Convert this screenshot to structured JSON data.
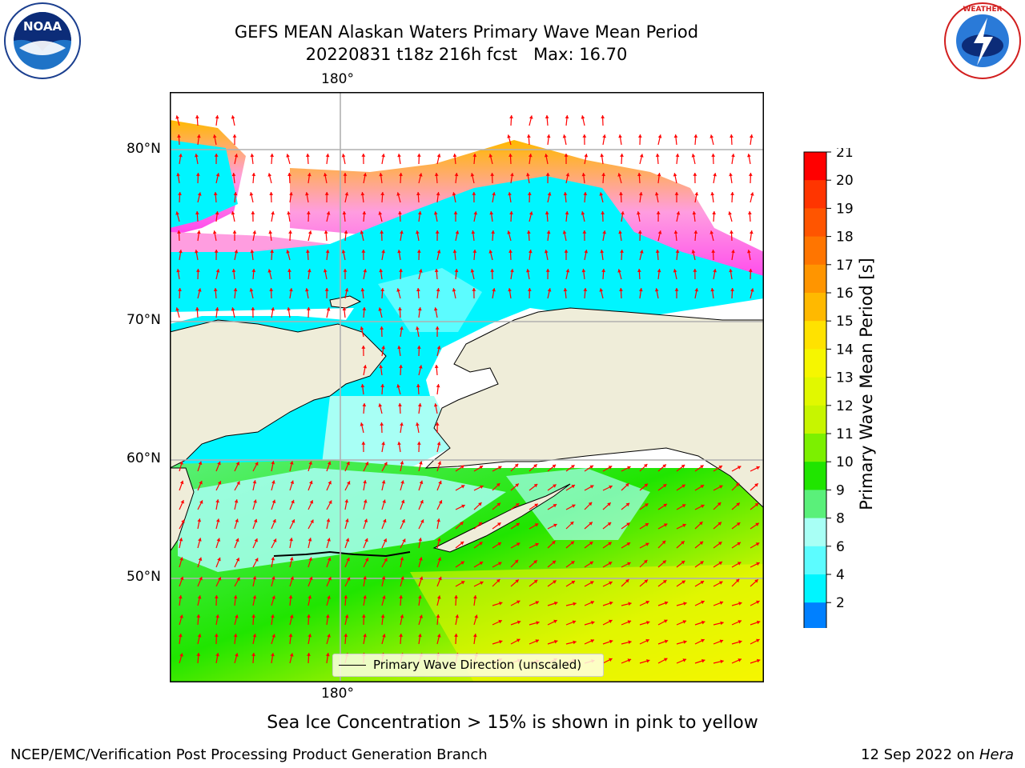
{
  "header": {
    "title_line1": "GEFS MEAN Alaskan Waters Primary Wave Mean Period",
    "title_line2": "20220831 t18z 216h fcst   Max: 16.70"
  },
  "logos": {
    "noara_text": "NOAA",
    "noaa_ring": "NATIONAL OCEANIC AND ATMOSPHERIC ADMINISTRATION · U.S. DEPARTMENT OF COMMERCE",
    "nws_ring": "NATIONAL WEATHER SERVICE"
  },
  "map": {
    "lon_label_top": "180°",
    "lon_label_bottom": "180°",
    "lat_labels": [
      "80°N",
      "70°N",
      "60°N",
      "50°N"
    ],
    "legend_label": "Primary Wave Direction (unscaled)",
    "arrow_color": "#ff0000",
    "land_color": "#efedd9"
  },
  "colorbar": {
    "label": "Primary Wave Mean Period [s]",
    "ticks": [
      "21",
      "20",
      "19",
      "18",
      "17",
      "16",
      "15",
      "14",
      "13",
      "12",
      "11",
      "10",
      "9",
      "8",
      "6",
      "4",
      "2"
    ],
    "colors": [
      "#ff0000",
      "#ff3500",
      "#ff5500",
      "#ff7500",
      "#ff9500",
      "#ffb900",
      "#ffe200",
      "#f6f600",
      "#e1f800",
      "#c7f500",
      "#7cf000",
      "#20e500",
      "#5af07a",
      "#a8fff5",
      "#5cfcff",
      "#00f5ff",
      "#0080ff"
    ],
    "extend_color": "#0000ff"
  },
  "footer": {
    "caption": "Sea Ice Concentration > 15% is shown in pink to yellow",
    "left": "NCEP/EMC/Verification Post Processing Product Generation Branch",
    "date": "12 Sep 2022 on ",
    "host": "Hera"
  }
}
